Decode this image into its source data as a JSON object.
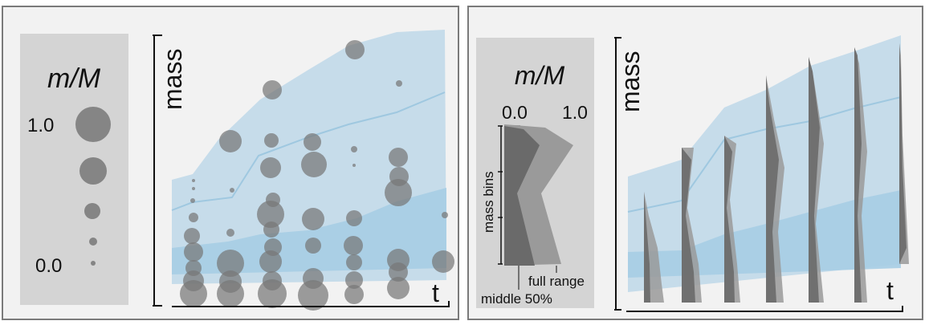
{
  "left_panel": {
    "legend": {
      "title": "m/M",
      "label_max": "1.0",
      "label_min": "0.0"
    },
    "axis_y": "mass",
    "axis_x": "t"
  },
  "right_panel": {
    "legend": {
      "title": "m/M",
      "tick_min": "0.0",
      "tick_max": "1.0",
      "bins_label": "mass bins",
      "full_range_label": "full range",
      "middle_label": "middle 50%"
    },
    "axis_y": "mass",
    "axis_x": "t"
  },
  "colors": {
    "panel_bg": "#f2f2f2",
    "legend_bg": "#d4d4d4",
    "band_light": "#c6dcea",
    "band_mid": "#a6cde4",
    "median_line": "#9fc8e0",
    "circle": "#777777",
    "violin_light": "#9a9a9a",
    "violin_dark": "#6a6a6a"
  }
}
